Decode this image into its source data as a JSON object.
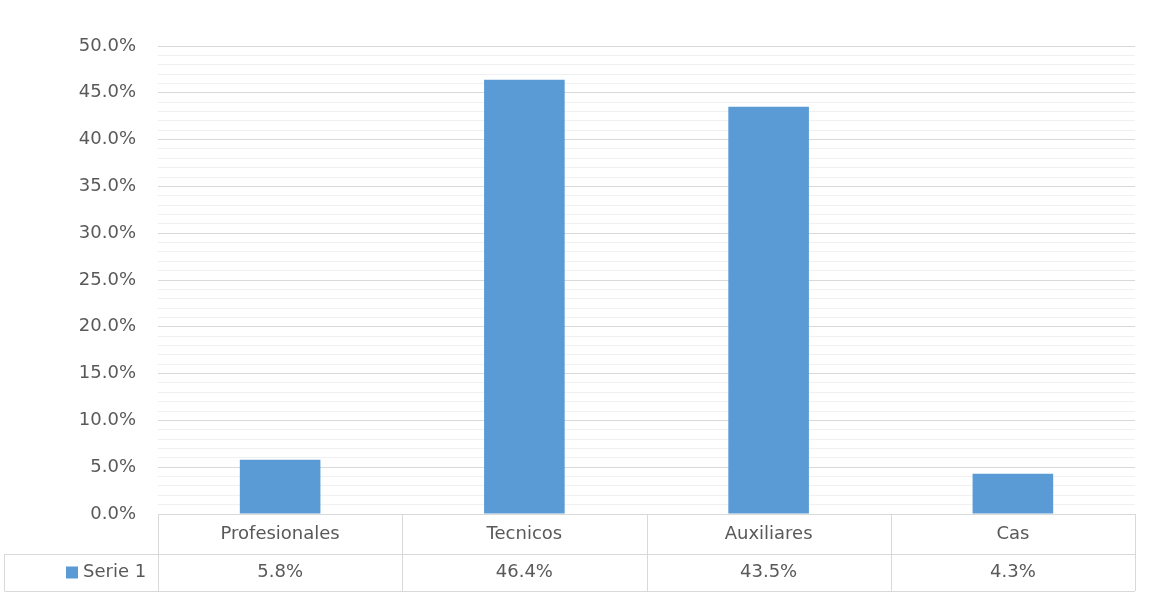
{
  "chart_data": {
    "type": "bar",
    "categories": [
      "Profesionales",
      "Tecnicos",
      "Auxiliares",
      "Cas"
    ],
    "series": [
      {
        "name": "Serie 1",
        "color": "#5b9bd5",
        "values": [
          5.8,
          46.4,
          43.5,
          4.3
        ],
        "value_labels": [
          "5.8%",
          "46.4%",
          "43.5%",
          "4.3%"
        ]
      }
    ],
    "ylim": [
      0,
      50
    ],
    "yticks": [
      {
        "value": 0,
        "label": "0.0%"
      },
      {
        "value": 1,
        "label": null
      },
      {
        "value": 2,
        "label": null
      },
      {
        "value": 3,
        "label": null
      },
      {
        "value": 4,
        "label": null
      },
      {
        "value": 5,
        "label": "5.0%"
      },
      {
        "value": 6,
        "label": null
      },
      {
        "value": 7,
        "label": null
      },
      {
        "value": 8,
        "label": null
      },
      {
        "value": 9,
        "label": null
      },
      {
        "value": 10,
        "label": "10.0%"
      },
      {
        "value": 11,
        "label": null
      },
      {
        "value": 12,
        "label": null
      },
      {
        "value": 13,
        "label": null
      },
      {
        "value": 14,
        "label": null
      },
      {
        "value": 15,
        "label": "15.0%"
      },
      {
        "value": 16,
        "label": null
      },
      {
        "value": 17,
        "label": null
      },
      {
        "value": 18,
        "label": null
      },
      {
        "value": 19,
        "label": null
      },
      {
        "value": 20,
        "label": "20.0%"
      },
      {
        "value": 21,
        "label": null
      },
      {
        "value": 22,
        "label": null
      },
      {
        "value": 23,
        "label": null
      },
      {
        "value": 24,
        "label": null
      },
      {
        "value": 25,
        "label": "25.0%"
      },
      {
        "value": 26,
        "label": null
      },
      {
        "value": 27,
        "label": null
      },
      {
        "value": 28,
        "label": null
      },
      {
        "value": 29,
        "label": null
      },
      {
        "value": 30,
        "label": "30.0%"
      },
      {
        "value": 31,
        "label": null
      },
      {
        "value": 32,
        "label": null
      },
      {
        "value": 33,
        "label": null
      },
      {
        "value": 34,
        "label": null
      },
      {
        "value": 35,
        "label": "35.0%"
      },
      {
        "value": 36,
        "label": null
      },
      {
        "value": 37,
        "label": null
      },
      {
        "value": 38,
        "label": null
      },
      {
        "value": 39,
        "label": null
      },
      {
        "value": 40,
        "label": "40.0%"
      },
      {
        "value": 41,
        "label": null
      },
      {
        "value": 42,
        "label": null
      },
      {
        "value": 43,
        "label": null
      },
      {
        "value": 44,
        "label": null
      },
      {
        "value": 45,
        "label": "45.0%"
      },
      {
        "value": 46,
        "label": null
      },
      {
        "value": 47,
        "label": null
      },
      {
        "value": 48,
        "label": null
      },
      {
        "value": 49,
        "label": null
      },
      {
        "value": 50,
        "label": "50.0%"
      }
    ],
    "grid": "y",
    "legend": "bottom left"
  }
}
